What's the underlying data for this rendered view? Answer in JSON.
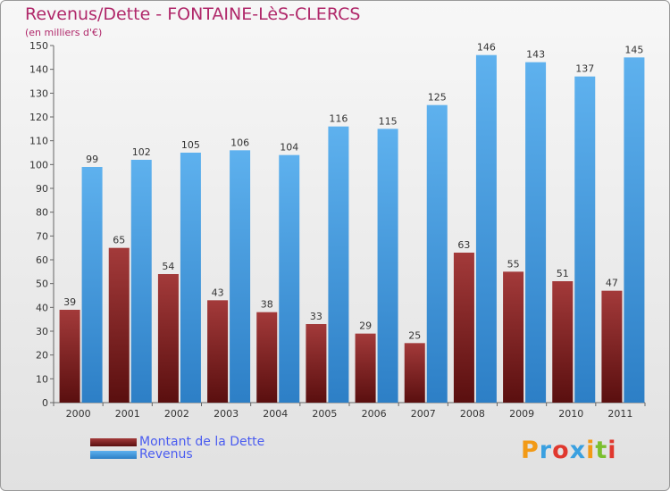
{
  "header": {
    "title": "Revenus/Dette - FONTAINE-LèS-CLERCS",
    "subtitle": "(en milliers d'€)"
  },
  "legend": [
    {
      "label": "Montant de la Dette",
      "color": "#7a1f1f"
    },
    {
      "label": "Revenus",
      "color": "#3f93d9"
    }
  ],
  "logo": {
    "text": "Proxiti",
    "colors": [
      "#f29a16",
      "#3aa0e0",
      "#e0382e",
      "#3aa0e0",
      "#f29a16",
      "#7bbf2e",
      "#e0382e"
    ]
  },
  "chart_data": {
    "type": "bar",
    "title": "Revenus/Dette - FONTAINE-LèS-CLERCS",
    "subtitle": "(en milliers d'€)",
    "categories": [
      "2000",
      "2001",
      "2002",
      "2003",
      "2004",
      "2005",
      "2006",
      "2007",
      "2008",
      "2009",
      "2010",
      "2011"
    ],
    "series": [
      {
        "name": "Montant de la Dette",
        "color": "#7a1f1f",
        "values": [
          39,
          65,
          54,
          43,
          38,
          33,
          29,
          25,
          63,
          55,
          51,
          47
        ]
      },
      {
        "name": "Revenus",
        "color": "#3f93d9",
        "values": [
          99,
          102,
          105,
          106,
          104,
          116,
          115,
          125,
          146,
          143,
          137,
          145
        ]
      }
    ],
    "ylim": [
      0,
      150
    ],
    "yticks": [
      0,
      10,
      20,
      30,
      40,
      50,
      60,
      70,
      80,
      90,
      100,
      110,
      120,
      130,
      140,
      150
    ],
    "grid": false,
    "data_labels": true,
    "legend_position": "bottom-left"
  }
}
